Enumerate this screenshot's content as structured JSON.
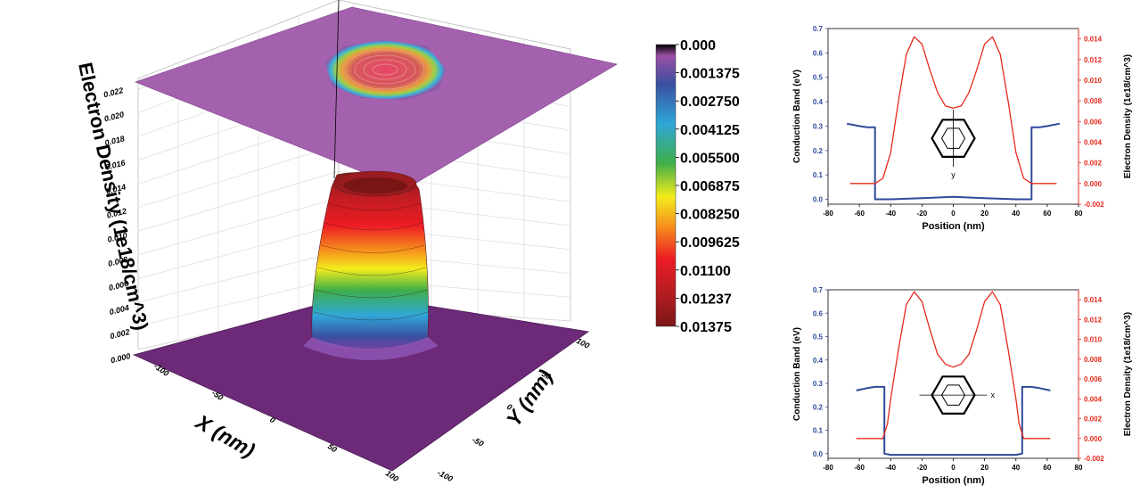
{
  "chart_data": [
    {
      "type": "surface3d",
      "title": "",
      "zlabel": "Electron Density (1e18/cm^3)",
      "xlabel": "X (nm)",
      "ylabel": "Y (nm)",
      "z_ticks": [
        "0.000",
        "0.002",
        "0.004",
        "0.006",
        "0.008",
        "0.010",
        "0.012",
        "0.014",
        "0.016",
        "0.018",
        "0.020",
        "0.022"
      ],
      "x_ticks": [
        "-100",
        "-50",
        "0",
        "50",
        "100"
      ],
      "y_ticks": [
        "100",
        "50",
        "0",
        "-50",
        "-100"
      ],
      "colorbar": {
        "labels": [
          "0.000",
          "0.001375",
          "0.002750",
          "0.004125",
          "0.005500",
          "0.006875",
          "0.008250",
          "0.009625",
          "0.01100",
          "0.01237",
          "0.01375"
        ],
        "colors": [
          "#000000",
          "#9b4fa5",
          "#3a4fa0",
          "#2fa7d8",
          "#3fae49",
          "#f3ec1b",
          "#f7941d",
          "#ed1c24",
          "#d71920",
          "#a11d21",
          "#7a1516"
        ]
      },
      "peak_value": 0.01375
    },
    {
      "type": "line",
      "xlabel": "Position (nm)",
      "ylabel": "Conduction Band (eV)",
      "y2label": "Electron Density (1e18/cm^3)",
      "xlim": [
        -80,
        80
      ],
      "ylim": [
        -0.02,
        0.7
      ],
      "y2lim": [
        -0.002,
        0.015
      ],
      "x_ticks": [
        "-80",
        "-60",
        "-40",
        "-20",
        "0",
        "20",
        "40",
        "60",
        "80"
      ],
      "y_ticks": [
        "0.0",
        "0.1",
        "0.2",
        "0.3",
        "0.4",
        "0.5",
        "0.6",
        "0.7"
      ],
      "y2_ticks": [
        "-0.002",
        "0.000",
        "0.002",
        "0.004",
        "0.006",
        "0.008",
        "0.010",
        "0.012",
        "0.014"
      ],
      "inset_axis_label": "y",
      "series": [
        {
          "axis": "left",
          "color": "#2e4a9a",
          "x": [
            -68,
            -60,
            -55,
            -50,
            -50,
            -40,
            -20,
            0,
            20,
            40,
            50,
            50,
            55,
            60,
            68
          ],
          "values": [
            0.31,
            0.3,
            0.295,
            0.295,
            0.0,
            0.0,
            0.005,
            0.01,
            0.005,
            0.0,
            0.0,
            0.295,
            0.295,
            0.3,
            0.31
          ]
        },
        {
          "axis": "right",
          "color": "#e8291c",
          "x": [
            -66,
            -55,
            -50,
            -45,
            -40,
            -35,
            -30,
            -25,
            -20,
            -15,
            -10,
            -5,
            0,
            5,
            10,
            15,
            20,
            25,
            30,
            35,
            40,
            45,
            50,
            55,
            66
          ],
          "values": [
            0.0,
            0.0,
            0.0,
            0.0005,
            0.003,
            0.008,
            0.0125,
            0.0142,
            0.0135,
            0.011,
            0.0088,
            0.0075,
            0.0073,
            0.0075,
            0.0088,
            0.011,
            0.0135,
            0.0142,
            0.0125,
            0.008,
            0.003,
            0.0005,
            0.0,
            0.0,
            0.0
          ]
        }
      ]
    },
    {
      "type": "line",
      "xlabel": "Position (nm)",
      "ylabel": "Conduction Band (eV)",
      "y2label": "Electron Density (1e18/cm^3)",
      "xlim": [
        -80,
        80
      ],
      "ylim": [
        -0.02,
        0.7
      ],
      "y2lim": [
        -0.002,
        0.015
      ],
      "x_ticks": [
        "-80",
        "-60",
        "-40",
        "-20",
        "0",
        "20",
        "40",
        "60",
        "80"
      ],
      "y_ticks": [
        "0.0",
        "0.1",
        "0.2",
        "0.3",
        "0.4",
        "0.5",
        "0.6",
        "0.7"
      ],
      "y2_ticks": [
        "-0.002",
        "0.000",
        "0.002",
        "0.004",
        "0.006",
        "0.008",
        "0.010",
        "0.012",
        "0.014"
      ],
      "inset_axis_label": "x",
      "series": [
        {
          "axis": "left",
          "color": "#2e4a9a",
          "x": [
            -62,
            -55,
            -50,
            -44,
            -44,
            -40,
            -20,
            0,
            20,
            40,
            44,
            44,
            50,
            55,
            62
          ],
          "values": [
            0.27,
            0.28,
            0.285,
            0.285,
            0.0,
            -0.005,
            -0.005,
            -0.005,
            -0.005,
            -0.005,
            0.0,
            0.285,
            0.285,
            0.28,
            0.27
          ]
        },
        {
          "axis": "right",
          "color": "#e8291c",
          "x": [
            -62,
            -50,
            -45,
            -42,
            -40,
            -35,
            -30,
            -25,
            -20,
            -15,
            -10,
            -5,
            0,
            5,
            10,
            15,
            20,
            25,
            30,
            35,
            40,
            42,
            45,
            50,
            62
          ],
          "values": [
            0.0,
            0.0,
            0.0,
            0.0015,
            0.004,
            0.009,
            0.0135,
            0.0148,
            0.0138,
            0.011,
            0.0085,
            0.0075,
            0.0072,
            0.0075,
            0.0085,
            0.011,
            0.0138,
            0.0148,
            0.0135,
            0.009,
            0.004,
            0.0015,
            0.0,
            0.0,
            0.0
          ]
        }
      ]
    }
  ]
}
